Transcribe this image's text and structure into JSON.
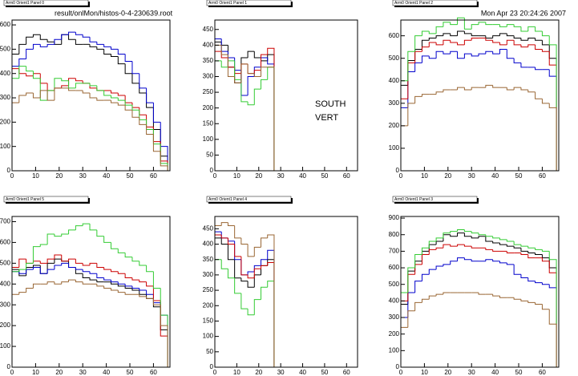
{
  "header": {
    "file": "result/onlMon/histos-0-4-230639.root",
    "date": "Mon Apr 23 20:24:26 2007"
  },
  "annotations": [
    "SOUTH",
    "VERT"
  ],
  "chart_data": [
    {
      "type": "histogram",
      "title": "Arm0 Orient1 Panel 0",
      "bins": [
        0,
        3,
        6,
        9,
        12,
        15,
        18,
        21,
        24,
        27,
        30,
        33,
        36,
        39,
        42,
        45,
        48,
        51,
        54,
        57,
        60,
        63,
        66
      ],
      "xlim": [
        0,
        67
      ],
      "xticks": [
        0,
        10,
        20,
        30,
        40,
        50,
        60
      ],
      "ylim": [
        0,
        620
      ],
      "yticks": [
        0,
        100,
        200,
        300,
        400,
        500,
        600
      ],
      "series": [
        {
          "color": "#000000",
          "values": [
            480,
            520,
            550,
            560,
            540,
            530,
            520,
            560,
            540,
            520,
            520,
            510,
            500,
            480,
            470,
            440,
            400,
            360,
            320,
            260,
            170,
            60
          ]
        },
        {
          "color": "#0000cc",
          "values": [
            430,
            460,
            500,
            520,
            510,
            520,
            540,
            560,
            570,
            560,
            550,
            530,
            520,
            510,
            500,
            480,
            450,
            400,
            340,
            280,
            200,
            100
          ]
        },
        {
          "color": "#cc0000",
          "values": [
            420,
            400,
            390,
            400,
            360,
            330,
            340,
            350,
            380,
            370,
            360,
            340,
            330,
            330,
            320,
            310,
            280,
            260,
            230,
            180,
            120,
            40
          ]
        },
        {
          "color": "#33cc33",
          "values": [
            380,
            430,
            410,
            380,
            290,
            330,
            380,
            370,
            340,
            360,
            360,
            350,
            330,
            310,
            300,
            290,
            270,
            250,
            210,
            170,
            110,
            30
          ]
        },
        {
          "color": "#996633",
          "values": [
            280,
            310,
            320,
            300,
            330,
            290,
            340,
            340,
            330,
            330,
            320,
            300,
            290,
            290,
            280,
            270,
            250,
            220,
            190,
            150,
            80,
            20
          ]
        }
      ]
    },
    {
      "type": "histogram",
      "title": "Arm0 Orient1 Panel 1",
      "bins": [
        0,
        3,
        6,
        9,
        12,
        15,
        18,
        21,
        24,
        27
      ],
      "xlim": [
        0,
        65
      ],
      "xticks": [
        0,
        10,
        20,
        30,
        40,
        50,
        60
      ],
      "ylim": [
        0,
        480
      ],
      "yticks": [
        0,
        50,
        100,
        150,
        200,
        250,
        300,
        350,
        400,
        450
      ],
      "series": [
        {
          "color": "#000000",
          "values": [
            410,
            400,
            330,
            280,
            360,
            380,
            360,
            350,
            370
          ]
        },
        {
          "color": "#0000cc",
          "values": [
            420,
            380,
            360,
            320,
            240,
            300,
            330,
            360,
            340
          ]
        },
        {
          "color": "#cc0000",
          "values": [
            380,
            360,
            330,
            310,
            340,
            310,
            320,
            370,
            390
          ]
        },
        {
          "color": "#33cc33",
          "values": [
            350,
            330,
            350,
            290,
            220,
            210,
            260,
            290,
            330
          ]
        },
        {
          "color": "#996633",
          "values": [
            400,
            370,
            300,
            280,
            340,
            310,
            300,
            330,
            330
          ]
        }
      ]
    },
    {
      "type": "histogram",
      "title": "Arm0 Orient1 Panel 2",
      "bins": [
        0,
        3,
        6,
        9,
        12,
        15,
        18,
        21,
        24,
        27,
        30,
        33,
        36,
        39,
        42,
        45,
        48,
        51,
        54,
        57,
        60,
        63,
        66
      ],
      "xlim": [
        0,
        67
      ],
      "xticks": [
        0,
        10,
        20,
        30,
        40,
        50,
        60
      ],
      "ylim": [
        0,
        670
      ],
      "yticks": [
        0,
        100,
        200,
        300,
        400,
        500,
        600
      ],
      "series": [
        {
          "color": "#000000",
          "values": [
            380,
            490,
            540,
            580,
            590,
            600,
            610,
            600,
            620,
            610,
            600,
            600,
            590,
            600,
            610,
            600,
            590,
            580,
            590,
            580,
            560,
            500
          ]
        },
        {
          "color": "#0000cc",
          "values": [
            280,
            440,
            480,
            510,
            500,
            530,
            520,
            530,
            500,
            520,
            510,
            520,
            530,
            520,
            540,
            500,
            480,
            460,
            460,
            450,
            450,
            420
          ]
        },
        {
          "color": "#cc0000",
          "values": [
            320,
            480,
            530,
            550,
            570,
            560,
            580,
            570,
            560,
            580,
            590,
            590,
            580,
            570,
            560,
            580,
            560,
            550,
            560,
            540,
            530,
            470
          ]
        },
        {
          "color": "#33cc33",
          "values": [
            400,
            530,
            600,
            620,
            610,
            640,
            660,
            650,
            680,
            630,
            650,
            660,
            650,
            650,
            640,
            650,
            640,
            620,
            640,
            620,
            600,
            560
          ]
        },
        {
          "color": "#996633",
          "values": [
            200,
            300,
            330,
            340,
            340,
            350,
            360,
            360,
            370,
            360,
            370,
            370,
            380,
            370,
            370,
            360,
            370,
            360,
            350,
            320,
            300,
            280
          ]
        }
      ]
    },
    {
      "type": "histogram",
      "title": "Arm0 Orient1 Panel 5",
      "bins": [
        0,
        3,
        6,
        9,
        12,
        15,
        18,
        21,
        24,
        27,
        30,
        33,
        36,
        39,
        42,
        45,
        48,
        51,
        54,
        57,
        60,
        63,
        66
      ],
      "xlim": [
        0,
        67
      ],
      "xticks": [
        0,
        10,
        20,
        30,
        40,
        50,
        60
      ],
      "ylim": [
        0,
        725
      ],
      "yticks": [
        0,
        100,
        200,
        300,
        400,
        500,
        600,
        700
      ],
      "series": [
        {
          "color": "#000000",
          "values": [
            470,
            440,
            480,
            490,
            450,
            500,
            520,
            510,
            480,
            450,
            430,
            420,
            410,
            410,
            400,
            390,
            380,
            370,
            350,
            330,
            290,
            180
          ]
        },
        {
          "color": "#0000cc",
          "values": [
            460,
            450,
            470,
            480,
            450,
            470,
            490,
            500,
            480,
            470,
            460,
            450,
            430,
            420,
            410,
            400,
            390,
            380,
            370,
            350,
            310,
            250
          ]
        },
        {
          "color": "#cc0000",
          "values": [
            480,
            520,
            500,
            510,
            500,
            520,
            540,
            510,
            520,
            500,
            490,
            500,
            480,
            470,
            460,
            450,
            430,
            420,
            410,
            390,
            320,
            150
          ]
        },
        {
          "color": "#33cc33",
          "values": [
            460,
            470,
            500,
            580,
            590,
            640,
            630,
            640,
            660,
            680,
            690,
            660,
            630,
            600,
            570,
            550,
            530,
            510,
            490,
            460,
            380,
            250
          ]
        },
        {
          "color": "#996633",
          "values": [
            350,
            360,
            380,
            400,
            400,
            410,
            400,
            410,
            420,
            410,
            400,
            400,
            390,
            380,
            370,
            360,
            350,
            350,
            340,
            330,
            300,
            200
          ]
        }
      ]
    },
    {
      "type": "histogram",
      "title": "Arm0 Orient1 Panel 4",
      "bins": [
        0,
        3,
        6,
        9,
        12,
        15,
        18,
        21,
        24,
        27
      ],
      "xlim": [
        0,
        65
      ],
      "xticks": [
        0,
        10,
        20,
        30,
        40,
        50,
        60
      ],
      "ylim": [
        0,
        490
      ],
      "yticks": [
        0,
        50,
        100,
        150,
        200,
        250,
        300,
        350,
        400,
        450
      ],
      "series": [
        {
          "color": "#000000",
          "values": [
            420,
            400,
            350,
            290,
            280,
            260,
            300,
            330,
            350
          ]
        },
        {
          "color": "#0000cc",
          "values": [
            440,
            420,
            410,
            350,
            300,
            310,
            330,
            350,
            380
          ]
        },
        {
          "color": "#cc0000",
          "values": [
            430,
            420,
            400,
            360,
            300,
            290,
            320,
            330,
            340
          ]
        },
        {
          "color": "#33cc33",
          "values": [
            350,
            320,
            290,
            240,
            190,
            170,
            220,
            260,
            280
          ]
        },
        {
          "color": "#996633",
          "values": [
            460,
            470,
            460,
            420,
            400,
            360,
            390,
            420,
            430
          ]
        }
      ]
    },
    {
      "type": "histogram",
      "title": "Arm0 Orient1 Panel 3",
      "bins": [
        0,
        3,
        6,
        9,
        12,
        15,
        18,
        21,
        24,
        27,
        30,
        33,
        36,
        39,
        42,
        45,
        48,
        51,
        54,
        57,
        60,
        63,
        66
      ],
      "xlim": [
        0,
        67
      ],
      "xticks": [
        0,
        10,
        20,
        30,
        40,
        50,
        60
      ],
      "ylim": [
        0,
        910
      ],
      "yticks": [
        0,
        100,
        200,
        300,
        400,
        500,
        600,
        700,
        800,
        900
      ],
      "series": [
        {
          "color": "#000000",
          "values": [
            380,
            580,
            640,
            700,
            740,
            760,
            800,
            790,
            810,
            790,
            780,
            790,
            760,
            750,
            740,
            730,
            720,
            700,
            690,
            680,
            660,
            600
          ]
        },
        {
          "color": "#0000cc",
          "values": [
            300,
            450,
            520,
            560,
            590,
            610,
            620,
            640,
            660,
            650,
            640,
            640,
            650,
            640,
            630,
            620,
            560,
            540,
            520,
            510,
            500,
            480
          ]
        },
        {
          "color": "#cc0000",
          "values": [
            400,
            560,
            620,
            680,
            710,
            720,
            740,
            730,
            740,
            730,
            720,
            720,
            710,
            700,
            700,
            690,
            690,
            680,
            660,
            660,
            640,
            570
          ]
        },
        {
          "color": "#33cc33",
          "values": [
            450,
            600,
            680,
            720,
            760,
            780,
            810,
            820,
            830,
            820,
            810,
            800,
            790,
            780,
            770,
            760,
            740,
            730,
            720,
            710,
            700,
            650
          ]
        },
        {
          "color": "#996633",
          "values": [
            240,
            340,
            390,
            410,
            430,
            440,
            450,
            450,
            450,
            450,
            450,
            440,
            440,
            430,
            420,
            420,
            410,
            400,
            390,
            380,
            350,
            260
          ]
        }
      ]
    }
  ]
}
